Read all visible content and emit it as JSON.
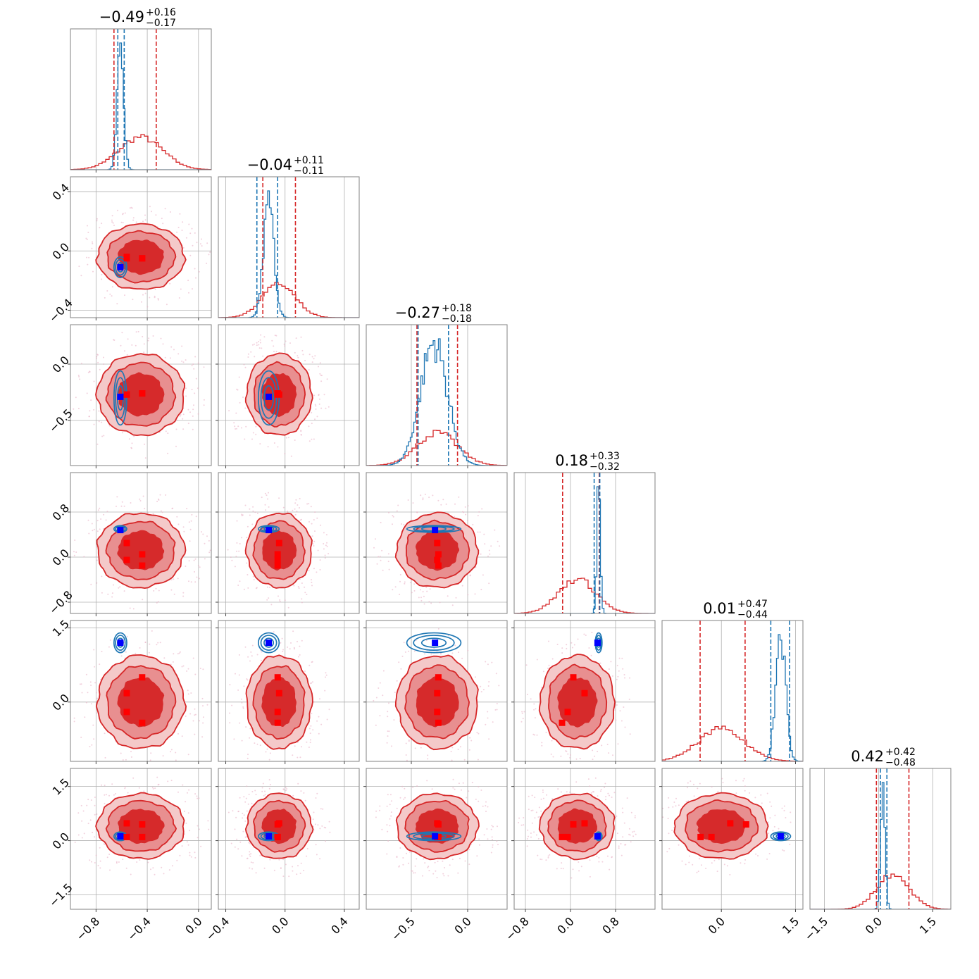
{
  "chart_data": {
    "type": "corner",
    "n_params": 6,
    "colors": {
      "red": "#d62728",
      "red_fill_outer": "#f4c9c9",
      "red_fill_mid": "#e88f90",
      "red_fill_inner": "#d62a2b",
      "blue": "#1f77b4",
      "true_marker": "#0000ff",
      "grid": "#b0b0b0"
    },
    "params": [
      {
        "range": [
          -1.0,
          0.1
        ],
        "ticks": [
          -0.8,
          -0.4,
          0.0
        ],
        "tick_labels": [
          "−0.8",
          "−0.4",
          "0.0"
        ],
        "title_main": "−0.49",
        "title_plus": "+0.16",
        "title_minus": "−0.17",
        "red_center": -0.45,
        "red_sigma": 0.17,
        "blue_center": -0.61,
        "blue_sigma": 0.025,
        "red_q": [
          -0.66,
          -0.33
        ],
        "blue_q": [
          -0.63,
          -0.58
        ]
      },
      {
        "range": [
          -0.45,
          0.5
        ],
        "ticks": [
          -0.4,
          0.0,
          0.4
        ],
        "tick_labels": [
          "−0.4",
          "0.0",
          "0.4"
        ],
        "title_main": "−0.04",
        "title_plus": "+0.11",
        "title_minus": "−0.11",
        "red_center": -0.04,
        "red_sigma": 0.11,
        "blue_center": -0.11,
        "blue_sigma": 0.035,
        "red_q": [
          -0.15,
          0.07
        ],
        "blue_q": [
          -0.19,
          -0.05
        ]
      },
      {
        "range": [
          -0.9,
          0.35
        ],
        "ticks": [
          -0.5,
          0.0
        ],
        "tick_labels": [
          "−0.5",
          "0.0"
        ],
        "title_main": "−0.27",
        "title_plus": "+0.18",
        "title_minus": "−0.18",
        "red_center": -0.27,
        "red_sigma": 0.18,
        "blue_center": -0.3,
        "blue_sigma": 0.12,
        "red_q": [
          -0.45,
          -0.09
        ],
        "blue_q": [
          -0.44,
          -0.17
        ]
      },
      {
        "range": [
          -1.0,
          1.5
        ],
        "ticks": [
          -0.8,
          0.0,
          0.8
        ],
        "tick_labels": [
          "−0.8",
          "0.0",
          "0.8"
        ],
        "title_main": "0.18",
        "title_plus": "+0.33",
        "title_minus": "−0.32",
        "red_center": 0.12,
        "red_sigma": 0.33,
        "blue_center": 0.5,
        "blue_sigma": 0.03,
        "red_q": [
          -0.14,
          0.51
        ],
        "blue_q": [
          0.42,
          0.52
        ]
      },
      {
        "range": [
          -1.2,
          1.65
        ],
        "ticks": [
          0.0,
          1.5
        ],
        "tick_labels": [
          "0.0",
          "1.5"
        ],
        "title_main": "0.01",
        "title_plus": "+0.47",
        "title_minus": "−0.44",
        "red_center": 0.0,
        "red_sigma": 0.47,
        "blue_center": 1.2,
        "blue_sigma": 0.1,
        "red_q": [
          -0.43,
          0.48
        ],
        "blue_q": [
          1.0,
          1.38
        ]
      },
      {
        "range": [
          -1.9,
          2.0
        ],
        "ticks": [
          -1.5,
          0.0,
          1.5
        ],
        "tick_labels": [
          "−1.5",
          "0.0",
          "1.5"
        ],
        "title_main": "0.42",
        "title_plus": "+0.42",
        "title_minus": "−0.48",
        "red_center": 0.4,
        "red_sigma": 0.45,
        "blue_center": 0.12,
        "blue_sigma": 0.06,
        "red_q": [
          -0.06,
          0.84
        ],
        "blue_q": [
          0.05,
          0.23
        ]
      }
    ],
    "truths": [
      -0.61,
      -0.11,
      -0.29,
      0.48,
      1.2,
      0.12
    ],
    "red_markers": [
      [
        -0.44,
        -0.05,
        -0.26,
        0.05,
        0.5,
        0.45
      ],
      [
        -0.56,
        -0.04,
        -0.27,
        0.25,
        0.18,
        0.48
      ],
      [
        -0.56,
        -0.05,
        -0.27,
        -0.05,
        -0.2,
        0.1
      ],
      [
        -0.44,
        -0.05,
        -0.26,
        -0.15,
        -0.42,
        0.1
      ]
    ],
    "grid": true
  }
}
